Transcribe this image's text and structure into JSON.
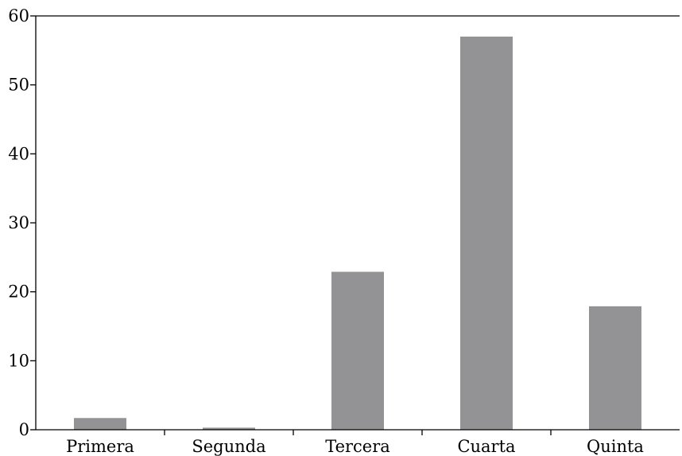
{
  "chart_data": {
    "type": "bar",
    "title": "",
    "xlabel": "",
    "ylabel": "",
    "categories": [
      "Primera",
      "Segunda",
      "Tercera",
      "Cuarta",
      "Quinta"
    ],
    "values": [
      1.7,
      0.3,
      22.9,
      57.0,
      17.9
    ],
    "ylim": [
      0,
      60
    ],
    "yticks": [
      "0",
      "10",
      "20",
      "30",
      "40",
      "50",
      "60"
    ],
    "grid": false,
    "legend": "none",
    "bar_color": "#939396",
    "axis_color": "#000000"
  }
}
